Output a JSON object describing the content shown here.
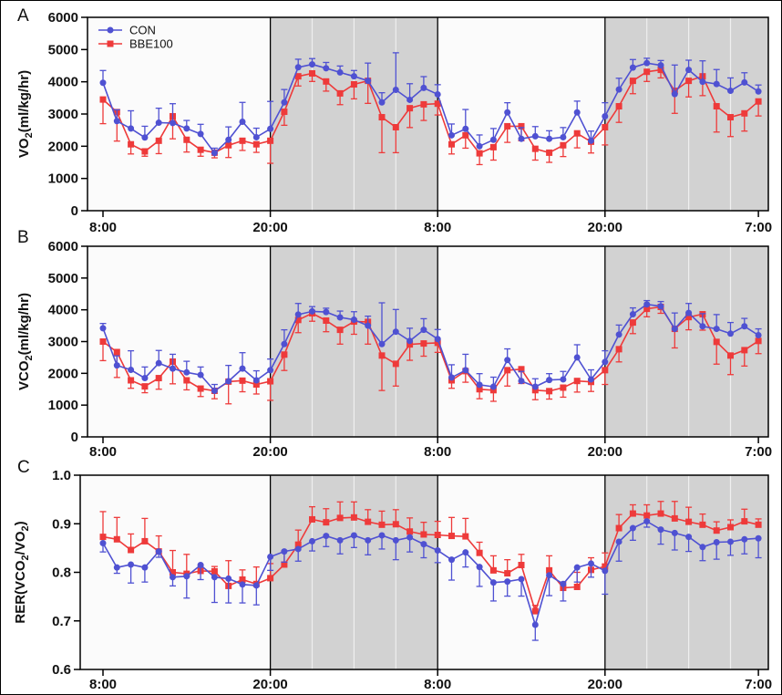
{
  "figure": {
    "description": "Three stacked line charts of indirect calorimetry over two light/dark cycles",
    "panels": [
      "A",
      "B",
      "C"
    ],
    "colors": {
      "con": "#4f51d2",
      "bbe": "#ee3a3a",
      "dark_band": "#d2d2d2",
      "light_band": "#fbfbfb",
      "axis": "#000000",
      "grid_on_band": "#ffffff"
    }
  },
  "legend": {
    "items": [
      {
        "label": "CON",
        "marker": "circle",
        "color": "#4f51d2"
      },
      {
        "label": "BBE100",
        "marker": "square",
        "color": "#ee3a3a"
      }
    ]
  },
  "chart_data": [
    {
      "type": "line",
      "panel_label": "A",
      "ylabel": "VO_2(ml/kg/hr)",
      "ylim": [
        0,
        6000
      ],
      "yticks": [
        0,
        1000,
        2000,
        3000,
        4000,
        5000,
        6000
      ],
      "ytick_labels": [
        "0",
        "1000",
        "2000",
        "3000",
        "4000",
        "5000",
        "6000"
      ],
      "n_points": 48,
      "xticks": [
        {
          "i": 0,
          "label": "8:00"
        },
        {
          "i": 12,
          "label": "20:00"
        },
        {
          "i": 24,
          "label": "8:00"
        },
        {
          "i": 36,
          "label": "20:00"
        },
        {
          "i": 47,
          "label": "7:00"
        }
      ],
      "dark_bands": [
        [
          12,
          24
        ],
        [
          36,
          47
        ]
      ],
      "grid_every_hours": 3,
      "legend": true,
      "series": [
        {
          "name": "CON",
          "marker": "circle",
          "color": "#4f51d2",
          "error_dir": "up",
          "values": [
            3970,
            2780,
            2550,
            2270,
            2730,
            2720,
            2550,
            2380,
            1790,
            2200,
            2760,
            2280,
            2540,
            3360,
            4450,
            4540,
            4420,
            4290,
            4170,
            4030,
            3360,
            3750,
            3440,
            3810,
            3610,
            2340,
            2540,
            2000,
            2200,
            3050,
            2230,
            2310,
            2230,
            2280,
            3050,
            2170,
            2930,
            3760,
            4440,
            4580,
            4510,
            3620,
            4370,
            4000,
            3930,
            3720,
            3980,
            3700
          ],
          "errors": [
            380,
            350,
            550,
            350,
            450,
            600,
            250,
            300,
            150,
            400,
            600,
            280,
            850,
            400,
            250,
            180,
            180,
            200,
            180,
            550,
            300,
            1150,
            500,
            350,
            300,
            350,
            600,
            350,
            350,
            300,
            350,
            300,
            250,
            300,
            350,
            300,
            420,
            350,
            250,
            150,
            150,
            900,
            300,
            650,
            450,
            400,
            300,
            200
          ]
        },
        {
          "name": "BBE100",
          "marker": "square",
          "color": "#ee3a3a",
          "error_dir": "down",
          "values": [
            3450,
            3060,
            2060,
            1840,
            2170,
            2930,
            2200,
            1890,
            1800,
            2030,
            2170,
            2060,
            2170,
            3070,
            4170,
            4260,
            4010,
            3640,
            3920,
            4030,
            2900,
            2590,
            3180,
            3300,
            3320,
            2060,
            2340,
            1780,
            1970,
            2620,
            2620,
            1920,
            1800,
            2030,
            2400,
            2140,
            2590,
            3240,
            4030,
            4310,
            4370,
            3720,
            4030,
            4170,
            3240,
            2900,
            3020,
            3390
          ],
          "errors": [
            750,
            900,
            300,
            150,
            400,
            700,
            380,
            200,
            160,
            380,
            300,
            250,
            700,
            420,
            300,
            250,
            300,
            350,
            450,
            700,
            1100,
            790,
            600,
            500,
            350,
            300,
            400,
            350,
            400,
            500,
            450,
            350,
            300,
            350,
            450,
            350,
            550,
            500,
            400,
            300,
            250,
            700,
            500,
            600,
            800,
            600,
            550,
            450
          ]
        }
      ]
    },
    {
      "type": "line",
      "panel_label": "B",
      "ylabel": "VCO_2(ml/kg/hr)",
      "ylim": [
        0,
        6000
      ],
      "yticks": [
        0,
        1000,
        2000,
        3000,
        4000,
        5000,
        6000
      ],
      "ytick_labels": [
        "0",
        "1000",
        "2000",
        "3000",
        "4000",
        "5000",
        "6000"
      ],
      "n_points": 48,
      "xticks": [
        {
          "i": 0,
          "label": "8:00"
        },
        {
          "i": 12,
          "label": "20:00"
        },
        {
          "i": 24,
          "label": "8:00"
        },
        {
          "i": 36,
          "label": "20:00"
        },
        {
          "i": 47,
          "label": "7:00"
        }
      ],
      "dark_bands": [
        [
          12,
          24
        ],
        [
          36,
          47
        ]
      ],
      "grid_every_hours": 3,
      "legend": false,
      "series": [
        {
          "name": "CON",
          "marker": "circle",
          "color": "#4f51d2",
          "error_dir": "up",
          "values": [
            3420,
            2250,
            2110,
            1850,
            2320,
            2150,
            2030,
            1950,
            1450,
            1750,
            2150,
            1780,
            2100,
            2920,
            3850,
            3950,
            3930,
            3760,
            3690,
            3500,
            2920,
            3310,
            3020,
            3370,
            3080,
            1870,
            2100,
            1640,
            1580,
            2420,
            1760,
            1580,
            1790,
            1810,
            2500,
            1810,
            2360,
            3220,
            3860,
            4170,
            4110,
            3400,
            3900,
            3480,
            3400,
            3250,
            3480,
            3200
          ],
          "errors": [
            150,
            300,
            600,
            350,
            400,
            450,
            350,
            250,
            200,
            500,
            500,
            300,
            350,
            450,
            350,
            150,
            120,
            200,
            250,
            300,
            1300,
            700,
            400,
            350,
            300,
            400,
            500,
            350,
            300,
            350,
            300,
            250,
            200,
            250,
            400,
            300,
            350,
            300,
            200,
            120,
            150,
            500,
            300,
            400,
            450,
            350,
            250,
            200
          ]
        },
        {
          "name": "BBE100",
          "marker": "square",
          "color": "#ee3a3a",
          "error_dir": "down",
          "values": [
            3000,
            2670,
            1780,
            1590,
            1850,
            2370,
            1780,
            1520,
            1450,
            1740,
            1770,
            1650,
            1750,
            2590,
            3680,
            3890,
            3660,
            3370,
            3630,
            3620,
            2560,
            2300,
            2910,
            2940,
            2960,
            1780,
            2070,
            1500,
            1470,
            2100,
            2130,
            1470,
            1440,
            1550,
            1760,
            1730,
            2100,
            2760,
            3600,
            4030,
            4090,
            3400,
            3770,
            3860,
            2990,
            2560,
            2730,
            3020
          ],
          "errors": [
            600,
            800,
            250,
            200,
            350,
            700,
            300,
            250,
            250,
            700,
            350,
            300,
            600,
            500,
            400,
            250,
            350,
            450,
            400,
            700,
            1100,
            700,
            500,
            400,
            300,
            250,
            350,
            300,
            350,
            500,
            450,
            300,
            250,
            300,
            350,
            300,
            450,
            400,
            350,
            250,
            200,
            600,
            400,
            500,
            700,
            600,
            500,
            400
          ]
        }
      ]
    },
    {
      "type": "line",
      "panel_label": "C",
      "ylabel": "RER(VCO_2/VO_2)",
      "ylim": [
        0.6,
        1.0
      ],
      "yticks": [
        0.6,
        0.7,
        0.8,
        0.9,
        1.0
      ],
      "ytick_labels": [
        "0.6",
        "0.7",
        "0.8",
        "0.9",
        "1.0"
      ],
      "n_points": 48,
      "xticks": [
        {
          "i": 0,
          "label": "8:00"
        },
        {
          "i": 12,
          "label": "20:00"
        },
        {
          "i": 24,
          "label": "8:00"
        },
        {
          "i": 36,
          "label": "20:00"
        },
        {
          "i": 47,
          "label": "7:00"
        }
      ],
      "dark_bands": [
        [
          12,
          24
        ],
        [
          36,
          47
        ]
      ],
      "grid_every_hours": 3,
      "legend": false,
      "series": [
        {
          "name": "CON",
          "marker": "circle",
          "color": "#4f51d2",
          "error_dir": "down",
          "values": [
            0.86,
            0.81,
            0.816,
            0.81,
            0.843,
            0.79,
            0.792,
            0.815,
            0.79,
            0.787,
            0.775,
            0.773,
            0.832,
            0.843,
            0.848,
            0.864,
            0.875,
            0.866,
            0.876,
            0.866,
            0.876,
            0.866,
            0.872,
            0.858,
            0.845,
            0.826,
            0.841,
            0.811,
            0.779,
            0.781,
            0.786,
            0.692,
            0.794,
            0.776,
            0.81,
            0.818,
            0.803,
            0.863,
            0.891,
            0.905,
            0.888,
            0.881,
            0.873,
            0.852,
            0.862,
            0.863,
            0.868,
            0.87
          ],
          "errors": [
            0.018,
            0.012,
            0.038,
            0.03,
            0.012,
            0.018,
            0.045,
            0.03,
            0.052,
            0.05,
            0.038,
            0.04,
            0.028,
            0.022,
            0.025,
            0.02,
            0.022,
            0.028,
            0.025,
            0.03,
            0.028,
            0.04,
            0.03,
            0.028,
            0.025,
            0.042,
            0.03,
            0.04,
            0.038,
            0.03,
            0.035,
            0.032,
            0.042,
            0.035,
            0.03,
            0.028,
            0.048,
            0.04,
            0.025,
            0.012,
            0.03,
            0.035,
            0.03,
            0.028,
            0.035,
            0.028,
            0.03,
            0.04
          ]
        },
        {
          "name": "BBE100",
          "marker": "square",
          "color": "#ee3a3a",
          "error_dir": "up",
          "values": [
            0.873,
            0.868,
            0.846,
            0.864,
            0.843,
            0.8,
            0.797,
            0.803,
            0.802,
            0.772,
            0.785,
            0.776,
            0.788,
            0.816,
            0.857,
            0.909,
            0.903,
            0.912,
            0.913,
            0.904,
            0.898,
            0.899,
            0.884,
            0.878,
            0.877,
            0.875,
            0.874,
            0.84,
            0.804,
            0.798,
            0.815,
            0.72,
            0.804,
            0.768,
            0.77,
            0.805,
            0.812,
            0.891,
            0.921,
            0.917,
            0.921,
            0.911,
            0.904,
            0.898,
            0.886,
            0.893,
            0.905,
            0.898
          ],
          "errors": [
            0.052,
            0.045,
            0.033,
            0.047,
            0.032,
            0.045,
            0.04,
            0.012,
            0.01,
            0.052,
            0.02,
            0.035,
            0.03,
            0.028,
            0.03,
            0.026,
            0.028,
            0.033,
            0.032,
            0.025,
            0.028,
            0.03,
            0.028,
            0.025,
            0.028,
            0.038,
            0.037,
            0.022,
            0.03,
            0.028,
            0.022,
            0.012,
            0.03,
            0.012,
            0.03,
            0.025,
            0.028,
            0.028,
            0.018,
            0.022,
            0.025,
            0.035,
            0.03,
            0.022,
            0.018,
            0.015,
            0.025,
            0.012
          ]
        }
      ]
    }
  ]
}
